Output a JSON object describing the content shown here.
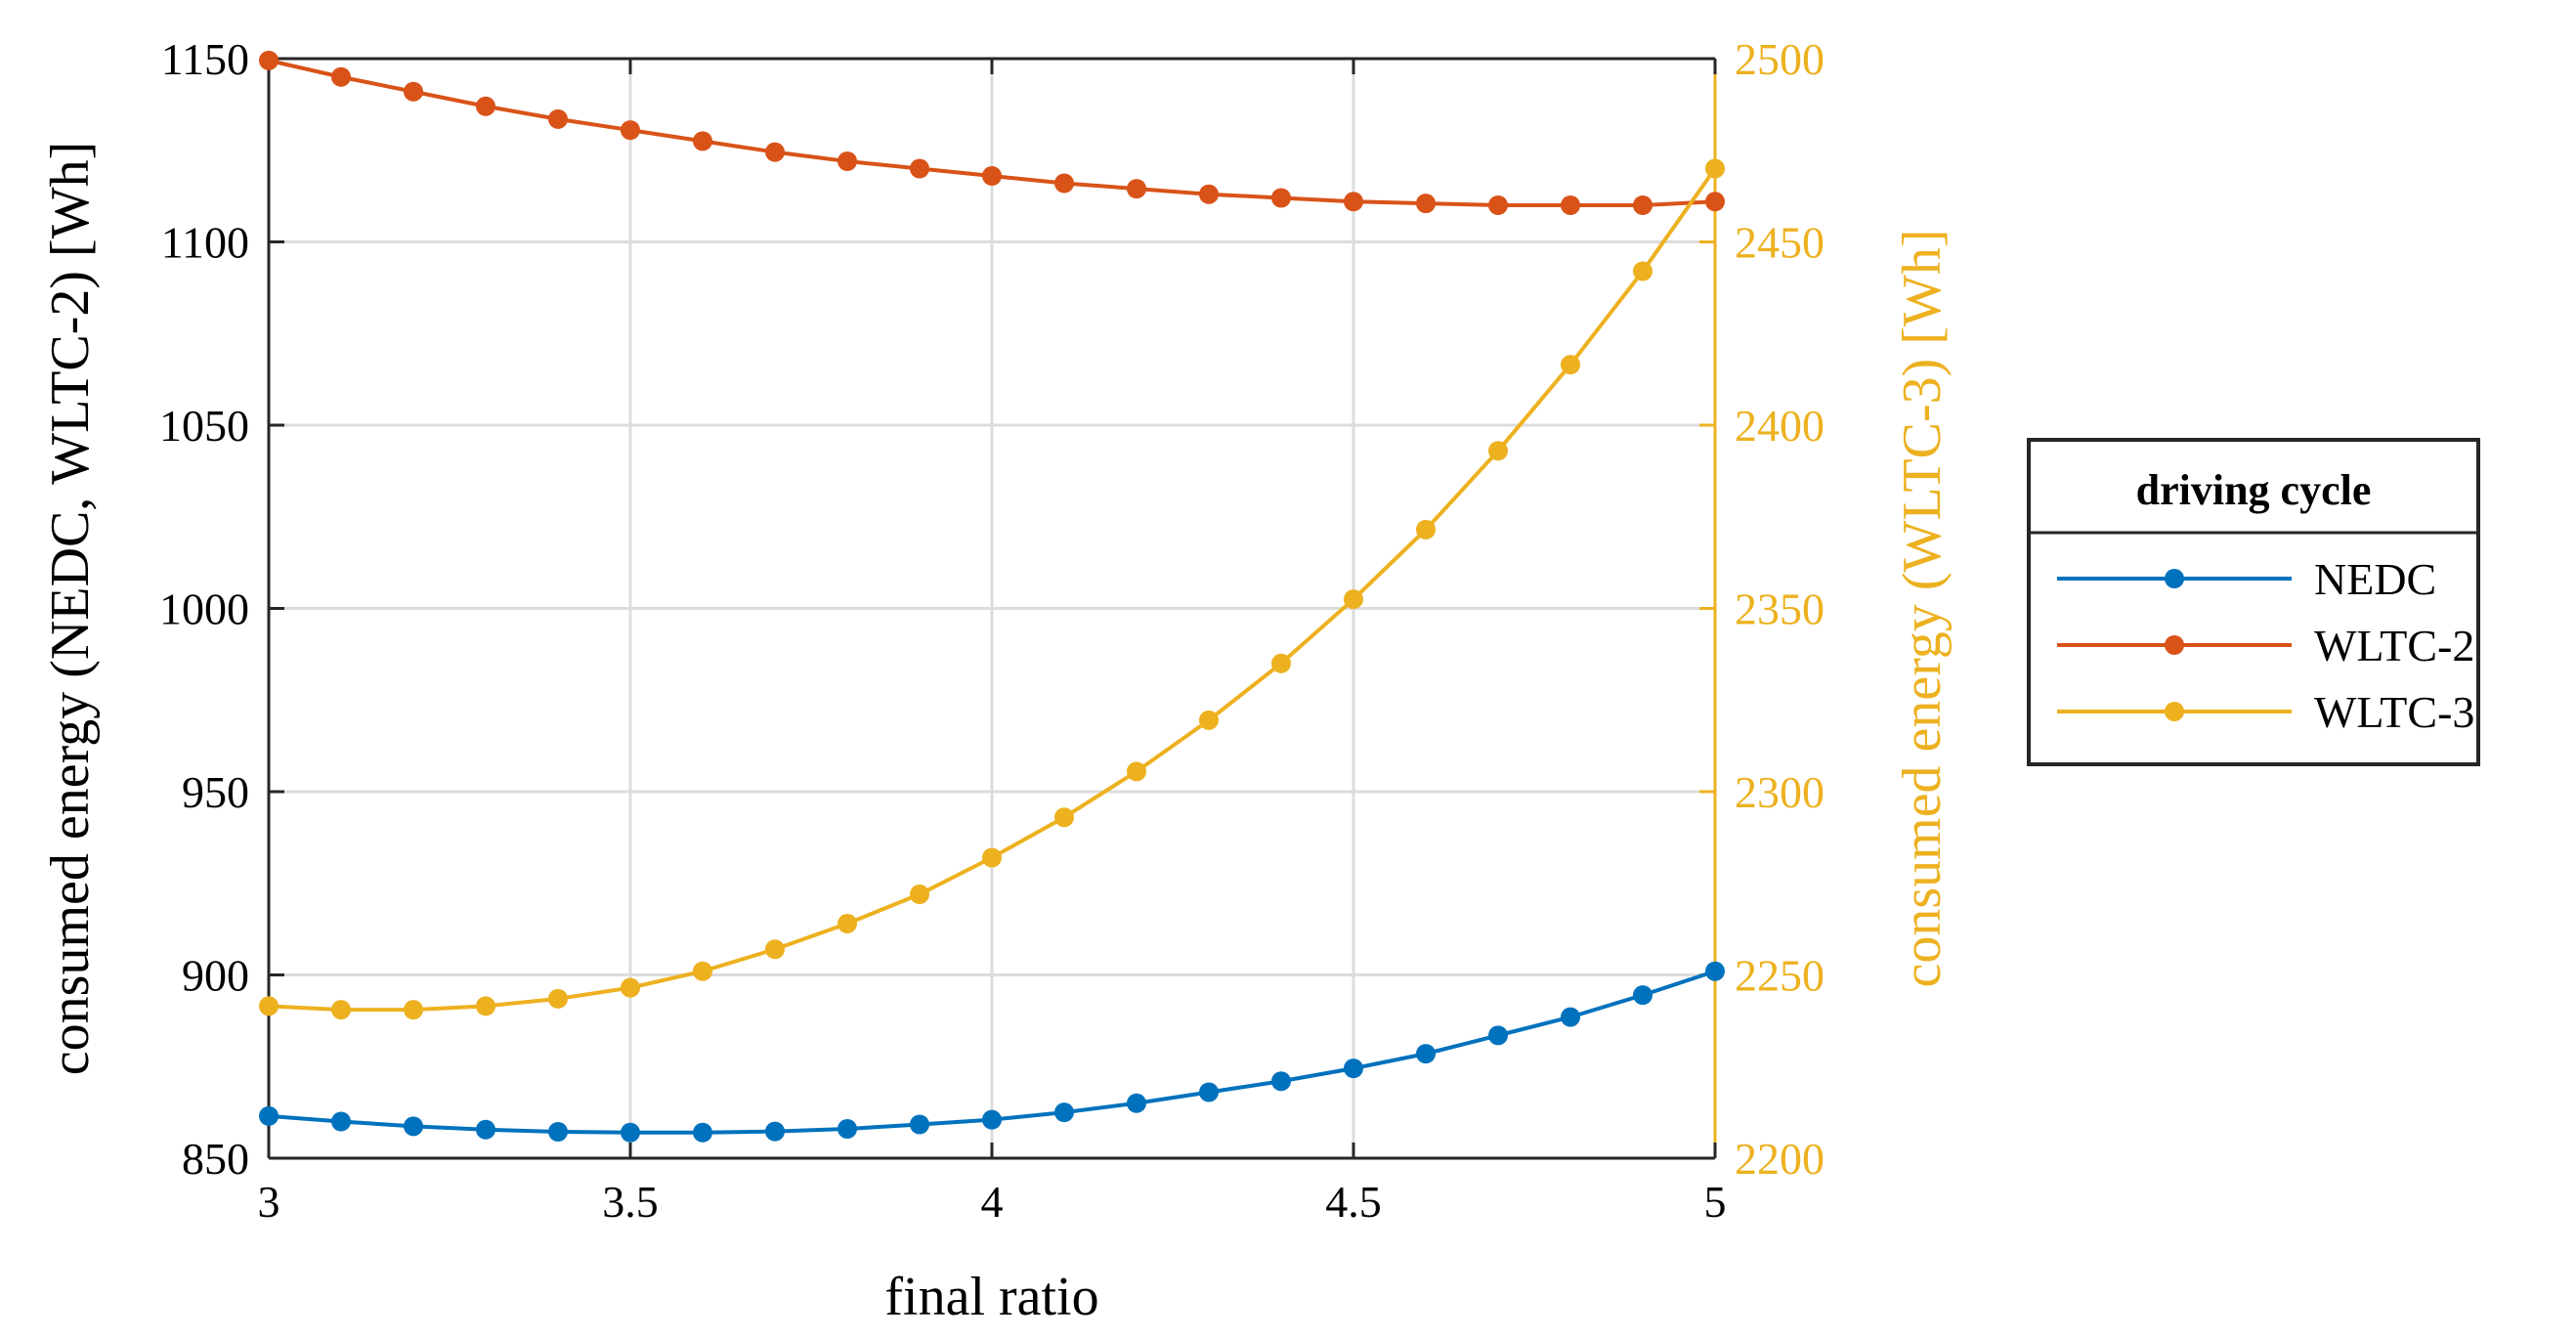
{
  "chart_data": {
    "type": "line",
    "title": "",
    "xlabel": "final ratio",
    "ylabel_left": "consumed energy (NEDC, WLTC-2) [Wh]",
    "ylabel_right": "consumed energy (WLTC-3) [Wh]",
    "xlim": [
      3,
      5
    ],
    "ylim_left": [
      850,
      1150
    ],
    "ylim_right": [
      2200,
      2500
    ],
    "x_ticks": [
      "3",
      "3.5",
      "4",
      "4.5",
      "5"
    ],
    "y_ticks_left": [
      "850",
      "900",
      "950",
      "1000",
      "1050",
      "1100",
      "1150"
    ],
    "y_ticks_right": [
      "2200",
      "2250",
      "2300",
      "2350",
      "2400",
      "2450",
      "2500"
    ],
    "grid": true,
    "legend": {
      "title": "driving cycle",
      "placement": "outside-right"
    },
    "x": [
      3.0,
      3.1,
      3.2,
      3.3,
      3.4,
      3.5,
      3.6,
      3.7,
      3.8,
      3.9,
      4.0,
      4.1,
      4.2,
      4.3,
      4.4,
      4.5,
      4.6,
      4.7,
      4.8,
      4.9,
      5.0
    ],
    "series": [
      {
        "name": "NEDC",
        "axis": "left",
        "color": "#0072BD",
        "values": [
          861.5,
          860,
          858.7,
          857.8,
          857.2,
          857,
          857,
          857.3,
          858,
          859.2,
          860.5,
          862.5,
          865,
          868,
          871,
          874.5,
          878.5,
          883.5,
          888.5,
          894.5,
          901
        ]
      },
      {
        "name": "WLTC-2",
        "axis": "left",
        "color": "#D95319",
        "values": [
          1149.5,
          1145,
          1141,
          1137,
          1133.5,
          1130.5,
          1127.5,
          1124.5,
          1122,
          1120,
          1118,
          1116,
          1114.5,
          1113,
          1112,
          1111,
          1110.5,
          1110,
          1110,
          1110,
          1111
        ]
      },
      {
        "name": "WLTC-3",
        "axis": "right",
        "color": "#EDB120",
        "values": [
          2241.5,
          2240.5,
          2240.5,
          2241.5,
          2243.5,
          2246.5,
          2251,
          2257,
          2264,
          2272,
          2282,
          2293,
          2305.5,
          2319.5,
          2335,
          2352.5,
          2371.5,
          2393,
          2416.5,
          2442,
          2470
        ]
      }
    ]
  }
}
